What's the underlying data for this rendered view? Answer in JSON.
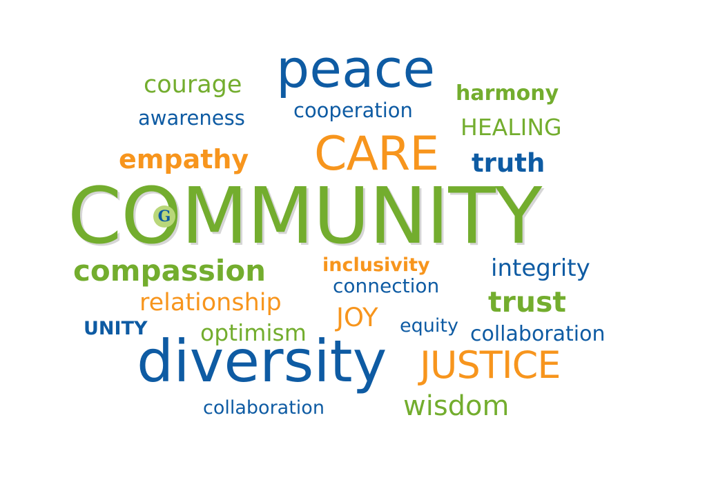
{
  "word_cloud": {
    "words": {
      "peace": "peace",
      "courage": "courage",
      "harmony": "harmony",
      "awareness": "awareness",
      "cooperation": "cooperation",
      "healing": "HEALING",
      "care": "CARE",
      "empathy": "empathy",
      "truth": "truth",
      "community": "COMMUNITY",
      "compassion": "compassion",
      "inclusivity": "inclusivity",
      "integrity": "integrity",
      "connection": "connection",
      "relationship": "relationship",
      "trust": "trust",
      "joy": "JOY",
      "unity": "UNITY",
      "optimism": "optimism",
      "equity": "equity",
      "collaboration_right": "collaboration",
      "diversity": "diversity",
      "justice": "JUSTICE",
      "wisdom": "wisdom",
      "collaboration_bottom": "collaboration"
    },
    "logo": {
      "letter": "G",
      "icon": "g-logo-icon"
    },
    "colors": {
      "green": "#73ad2e",
      "blue": "#0e5ba3",
      "orange": "#f7951d",
      "background": "#ffffff"
    }
  }
}
